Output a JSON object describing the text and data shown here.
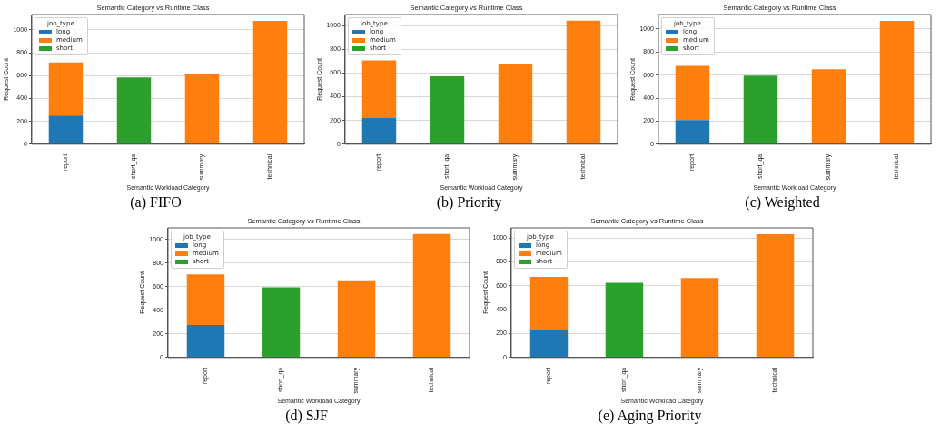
{
  "chart_data": [
    {
      "type": "bar",
      "title": "Semantic Category vs Runtime Class",
      "xlabel": "Semantic Workload Category",
      "ylabel": "Request Count",
      "legend_title": "job_type",
      "categories": [
        "report",
        "short_qa",
        "summary",
        "technical"
      ],
      "stacked": true,
      "ylim": [
        0,
        1135
      ],
      "yticks": [
        0,
        200,
        400,
        600,
        800,
        1000
      ],
      "grid": "y",
      "legend": "top left",
      "annotations": [
        "(a) FIFO"
      ],
      "series": [
        {
          "name": "long",
          "color": "#1f77b4",
          "values": [
            250,
            0,
            0,
            0
          ]
        },
        {
          "name": "medium",
          "color": "#ff7f0e",
          "values": [
            465,
            0,
            610,
            1080
          ]
        },
        {
          "name": "short",
          "color": "#2ca02c",
          "values": [
            0,
            585,
            0,
            0
          ]
        }
      ]
    },
    {
      "type": "bar",
      "title": "Semantic Category vs Runtime Class",
      "xlabel": "Semantic Workload Category",
      "ylabel": "Request Count",
      "legend_title": "job_type",
      "categories": [
        "report",
        "short_qa",
        "summary",
        "technical"
      ],
      "stacked": true,
      "ylim": [
        0,
        1092
      ],
      "yticks": [
        0,
        200,
        400,
        600,
        800,
        1000
      ],
      "grid": "y",
      "legend": "top left",
      "annotations": [
        "(b) Priority"
      ],
      "series": [
        {
          "name": "long",
          "color": "#1f77b4",
          "values": [
            220,
            0,
            0,
            0
          ]
        },
        {
          "name": "medium",
          "color": "#ff7f0e",
          "values": [
            485,
            0,
            680,
            1040
          ]
        },
        {
          "name": "short",
          "color": "#2ca02c",
          "values": [
            0,
            572,
            0,
            0
          ]
        }
      ]
    },
    {
      "type": "bar",
      "title": "Semantic Category vs Runtime Class",
      "xlabel": "Semantic Workload Category",
      "ylabel": "Request Count",
      "legend_title": "job_type",
      "categories": [
        "report",
        "short_qa",
        "summary",
        "technical"
      ],
      "stacked": true,
      "ylim": [
        0,
        1125
      ],
      "yticks": [
        0,
        200,
        400,
        600,
        800,
        1000
      ],
      "grid": "y",
      "legend": "top left",
      "annotations": [
        "(c) Weighted"
      ],
      "series": [
        {
          "name": "long",
          "color": "#1f77b4",
          "values": [
            210,
            0,
            0,
            0
          ]
        },
        {
          "name": "medium",
          "color": "#ff7f0e",
          "values": [
            470,
            0,
            650,
            1070
          ]
        },
        {
          "name": "short",
          "color": "#2ca02c",
          "values": [
            0,
            595,
            0,
            0
          ]
        }
      ]
    },
    {
      "type": "bar",
      "title": "Semantic Category vs Runtime Class",
      "xlabel": "Semantic Workload Category",
      "ylabel": "Request Count",
      "legend_title": "job_type",
      "categories": [
        "report",
        "short_qa",
        "summary",
        "technical"
      ],
      "stacked": true,
      "ylim": [
        0,
        1100
      ],
      "yticks": [
        0,
        200,
        400,
        600,
        800,
        1000
      ],
      "grid": "y",
      "legend": "top left",
      "annotations": [
        "(d) SJF"
      ],
      "series": [
        {
          "name": "long",
          "color": "#1f77b4",
          "values": [
            275,
            0,
            0,
            0
          ]
        },
        {
          "name": "medium",
          "color": "#ff7f0e",
          "values": [
            430,
            0,
            648,
            1048
          ]
        },
        {
          "name": "short",
          "color": "#2ca02c",
          "values": [
            0,
            595,
            0,
            0
          ]
        }
      ]
    },
    {
      "type": "bar",
      "title": "Semantic Category vs Runtime Class",
      "xlabel": "Semantic Workload Category",
      "ylabel": "Request Count",
      "legend_title": "job_type",
      "categories": [
        "report",
        "short_qa",
        "summary",
        "technical"
      ],
      "stacked": true,
      "ylim": [
        0,
        1085
      ],
      "yticks": [
        0,
        200,
        400,
        600,
        800,
        1000
      ],
      "grid": "y",
      "legend": "top left",
      "annotations": [
        "(e) Aging Priority"
      ],
      "series": [
        {
          "name": "long",
          "color": "#1f77b4",
          "values": [
            230,
            0,
            0,
            0
          ]
        },
        {
          "name": "medium",
          "color": "#ff7f0e",
          "values": [
            445,
            0,
            665,
            1032
          ]
        },
        {
          "name": "short",
          "color": "#2ca02c",
          "values": [
            0,
            625,
            0,
            0
          ]
        }
      ]
    }
  ]
}
